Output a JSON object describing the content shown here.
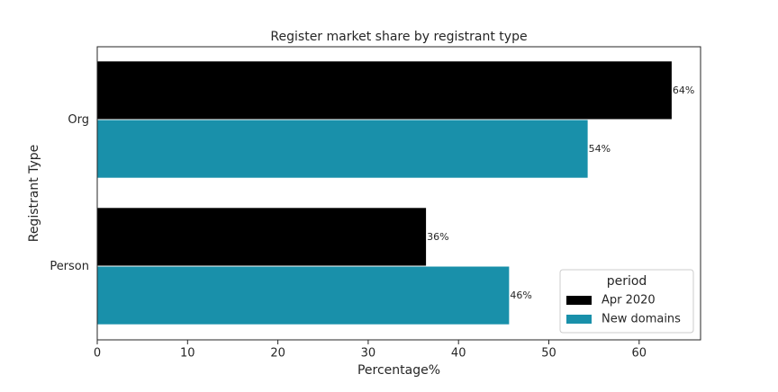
{
  "chart_data": {
    "type": "hbar",
    "title": "Register market share by registrant type",
    "x_label": "Percentage%",
    "y_label": "Registrant Type",
    "categories": [
      "Org",
      "Person"
    ],
    "series": [
      {
        "name": "Apr 2020",
        "color": "#000000",
        "values": [
          63.6,
          36.4
        ],
        "value_labels": [
          "64%",
          "36%"
        ]
      },
      {
        "name": "New domains",
        "color": "#1990aa",
        "values": [
          54.3,
          45.6
        ],
        "value_labels": [
          "54%",
          "46%"
        ]
      }
    ],
    "xlim": [
      0,
      66.8
    ],
    "xticks": [
      0,
      10,
      20,
      30,
      40,
      50,
      60
    ],
    "legend_title": "period",
    "legend": "lower right"
  }
}
